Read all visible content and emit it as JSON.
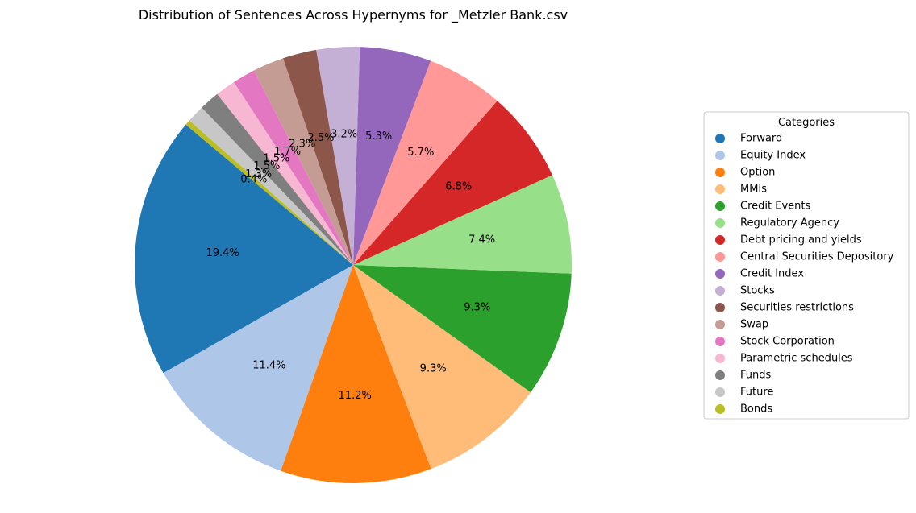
{
  "chart_data": {
    "type": "pie",
    "title": "Distribution of Sentences Across Hypernyms for _Metzler Bank.csv",
    "legend_title": "Categories",
    "legend_position": "right",
    "start_angle_deg": 140,
    "direction": "counterclockwise",
    "slices": [
      {
        "label": "Forward",
        "value": 19.4,
        "text": "19.4%",
        "color": "#1f77b4"
      },
      {
        "label": "Equity Index",
        "value": 11.4,
        "text": "11.4%",
        "color": "#aec7e8"
      },
      {
        "label": "Option",
        "value": 11.2,
        "text": "11.2%",
        "color": "#ff7f0e"
      },
      {
        "label": "MMIs",
        "value": 9.3,
        "text": "9.3%",
        "color": "#ffbb78"
      },
      {
        "label": "Credit Events",
        "value": 9.3,
        "text": "9.3%",
        "color": "#2ca02c"
      },
      {
        "label": "Regulatory Agency",
        "value": 7.4,
        "text": "7.4%",
        "color": "#98df8a"
      },
      {
        "label": "Debt pricing and yields",
        "value": 6.8,
        "text": "6.8%",
        "color": "#d62728"
      },
      {
        "label": "Central Securities Depository",
        "value": 5.7,
        "text": "5.7%",
        "color": "#ff9896"
      },
      {
        "label": "Credit Index",
        "value": 5.3,
        "text": "5.3%",
        "color": "#9467bd"
      },
      {
        "label": "Stocks",
        "value": 3.2,
        "text": "3.2%",
        "color": "#c5b0d5"
      },
      {
        "label": "Securities restrictions",
        "value": 2.5,
        "text": "2.5%",
        "color": "#8c564b"
      },
      {
        "label": "Swap",
        "value": 2.3,
        "text": "2.3%",
        "color": "#c49c94"
      },
      {
        "label": "Stock Corporation",
        "value": 1.7,
        "text": "1.7%",
        "color": "#e377c2"
      },
      {
        "label": "Parametric schedules",
        "value": 1.5,
        "text": "1.5%",
        "color": "#f7b6d2"
      },
      {
        "label": "Funds",
        "value": 1.5,
        "text": "1.5%",
        "color": "#7f7f7f"
      },
      {
        "label": "Future",
        "value": 1.3,
        "text": "1.3%",
        "color": "#c7c7c7"
      },
      {
        "label": "Bonds",
        "value": 0.4,
        "text": "0.4%",
        "color": "#bcbd22"
      }
    ]
  }
}
